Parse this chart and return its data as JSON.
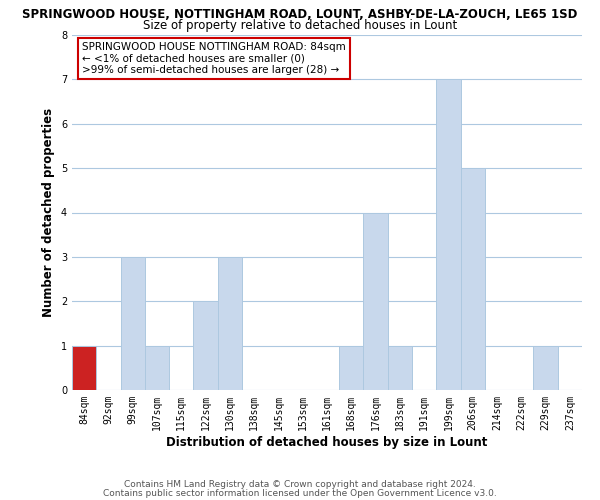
{
  "title": "SPRINGWOOD HOUSE, NOTTINGHAM ROAD, LOUNT, ASHBY-DE-LA-ZOUCH, LE65 1SD",
  "subtitle": "Size of property relative to detached houses in Lount",
  "xlabel": "Distribution of detached houses by size in Lount",
  "ylabel": "Number of detached properties",
  "categories": [
    "84sqm",
    "92sqm",
    "99sqm",
    "107sqm",
    "115sqm",
    "122sqm",
    "130sqm",
    "138sqm",
    "145sqm",
    "153sqm",
    "161sqm",
    "168sqm",
    "176sqm",
    "183sqm",
    "191sqm",
    "199sqm",
    "206sqm",
    "214sqm",
    "222sqm",
    "229sqm",
    "237sqm"
  ],
  "values": [
    1,
    0,
    3,
    1,
    0,
    2,
    3,
    0,
    0,
    0,
    0,
    1,
    4,
    1,
    0,
    7,
    5,
    0,
    0,
    1,
    0
  ],
  "bar_color": "#c8d8ec",
  "highlight_bar_color": "#cc2222",
  "highlight_index": 0,
  "ylim": [
    0,
    8
  ],
  "yticks": [
    0,
    1,
    2,
    3,
    4,
    5,
    6,
    7,
    8
  ],
  "annotation_box_text": "SPRINGWOOD HOUSE NOTTINGHAM ROAD: 84sqm\n← <1% of detached houses are smaller (0)\n>99% of semi-detached houses are larger (28) →",
  "annotation_box_color": "#ffffff",
  "annotation_box_edge_color": "#cc0000",
  "footer_line1": "Contains HM Land Registry data © Crown copyright and database right 2024.",
  "footer_line2": "Contains public sector information licensed under the Open Government Licence v3.0.",
  "plot_bg_color": "#ffffff",
  "fig_bg_color": "#ffffff",
  "grid_color": "#adc8e0",
  "title_fontsize": 8.5,
  "subtitle_fontsize": 8.5,
  "axis_label_fontsize": 8.5,
  "tick_fontsize": 7,
  "footer_fontsize": 6.5,
  "annot_fontsize": 7.5
}
